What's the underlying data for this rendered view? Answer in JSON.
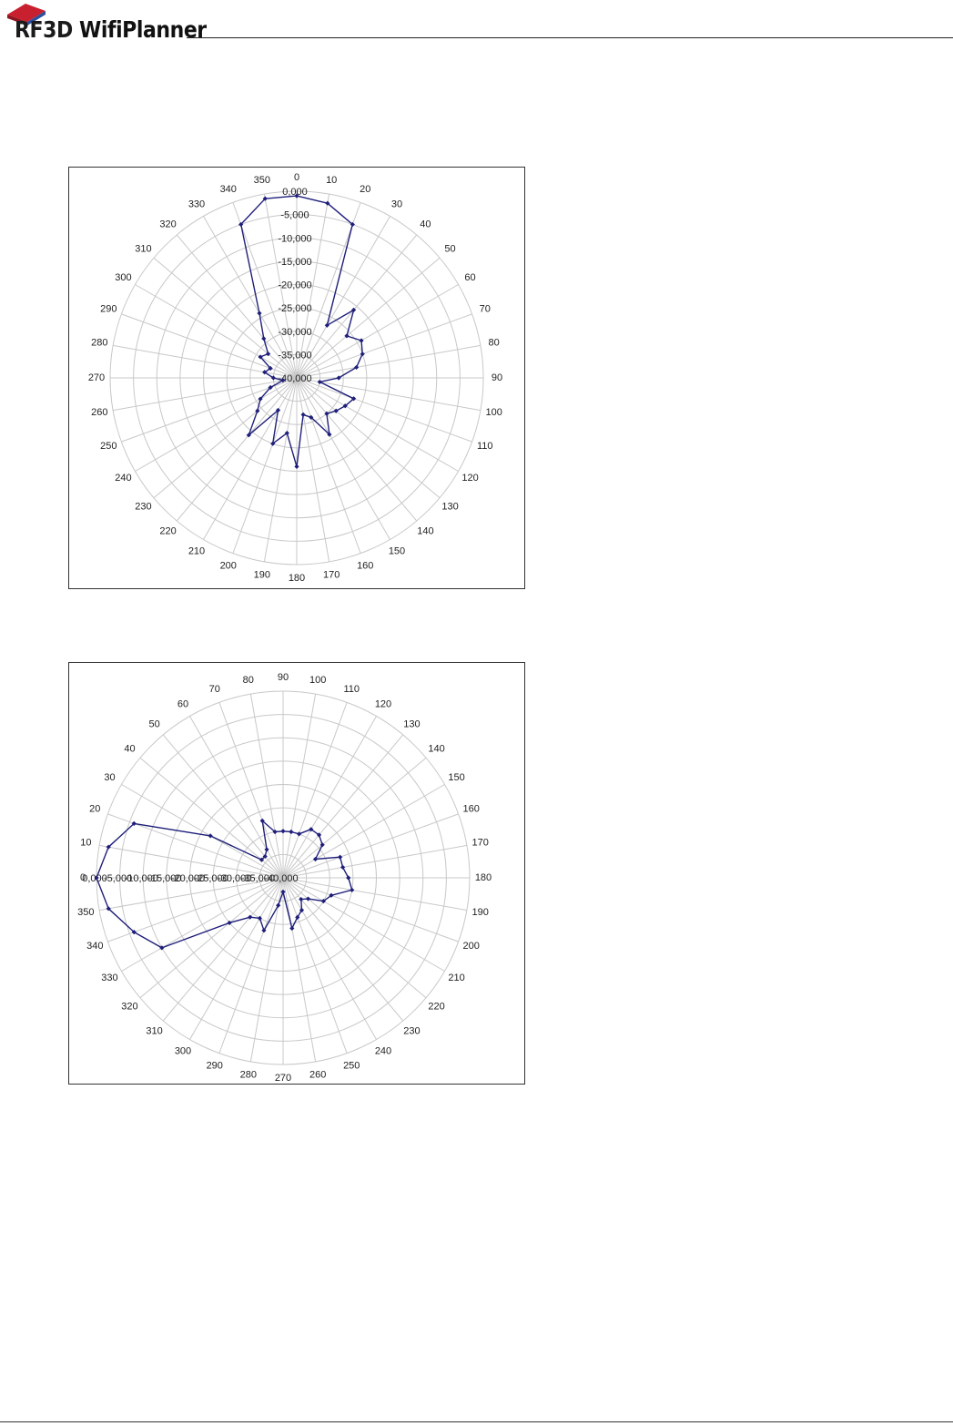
{
  "header": {
    "logo_prefix": "RF3D",
    "logo_name": "WifiPlanner"
  },
  "colors": {
    "series": "#1f1f7a",
    "grid": "#c8c8c8",
    "logo_red": "#c8202e",
    "logo_blue": "#2a4f9c"
  },
  "chart_data": [
    {
      "type": "polar-line",
      "title": "",
      "angular_labels": [
        "0",
        "10",
        "20",
        "30",
        "40",
        "50",
        "60",
        "70",
        "80",
        "90",
        "100",
        "110",
        "120",
        "130",
        "140",
        "150",
        "160",
        "170",
        "180",
        "190",
        "200",
        "210",
        "220",
        "230",
        "240",
        "250",
        "260",
        "270",
        "280",
        "290",
        "300",
        "310",
        "320",
        "330",
        "340",
        "350"
      ],
      "radial_labels": [
        "0,000",
        "-5,000",
        "-10,000",
        "-15,000",
        "-20,000",
        "-25,000",
        "-30,000",
        "-35,000",
        "-40,000"
      ],
      "rlim": [
        -40,
        0
      ],
      "grid": true,
      "series": [
        {
          "marker": "diamond",
          "values": [
            -1,
            -2,
            -5,
            -27,
            -21,
            -26,
            -24,
            -25,
            -27,
            -31,
            -35,
            -27,
            -28,
            -29,
            -30,
            -26,
            -31,
            -32,
            -21,
            -28,
            -25,
            -32,
            -24,
            -29,
            -31,
            -34,
            -37,
            -35,
            -33,
            -34,
            -31,
            -32,
            -29,
            -24,
            -5,
            -1
          ]
        }
      ]
    },
    {
      "type": "polar-line",
      "title": "",
      "angular_labels": [
        "0",
        "10",
        "20",
        "30",
        "40",
        "50",
        "60",
        "70",
        "80",
        "90",
        "100",
        "110",
        "120",
        "130",
        "140",
        "150",
        "160",
        "170",
        "180",
        "190",
        "200",
        "210",
        "220",
        "230",
        "240",
        "250",
        "260",
        "270",
        "280",
        "290",
        "300",
        "310",
        "320",
        "330",
        "340",
        "350"
      ],
      "radial_labels": [
        "0,000",
        "-5,000",
        "-10,000",
        "-15,000",
        "-20,000",
        "-25,000",
        "-30,000",
        "-35,000",
        "-40,000"
      ],
      "rlim": [
        -40,
        0
      ],
      "grid": true,
      "series": [
        {
          "marker": "diamond",
          "values": [
            0,
            -2,
            -6,
            -22,
            -34,
            -34,
            -33,
            -27,
            -30,
            -30,
            -30,
            -30,
            -28,
            -28,
            -29,
            -32,
            -27,
            -27,
            -26,
            -25,
            -29,
            -30,
            -33,
            -34,
            -32,
            -31,
            -29,
            -37,
            -34,
            -28,
            -30,
            -29,
            -25,
            -10,
            -6,
            -2
          ]
        }
      ]
    }
  ]
}
